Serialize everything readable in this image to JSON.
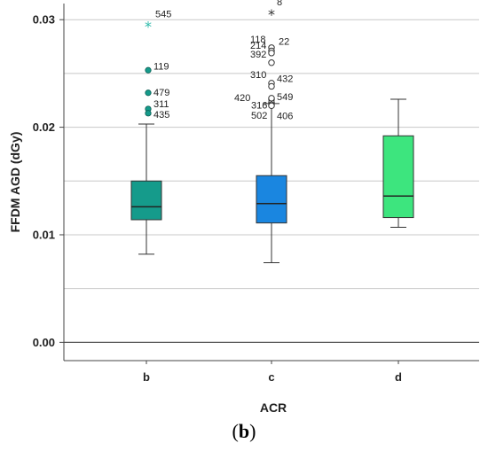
{
  "chart_data": {
    "type": "boxplot",
    "xlabel": "ACR",
    "ylabel": "FFDM AGD (dGy)",
    "ylim": [
      -0.0017,
      0.0315
    ],
    "yticks": [
      0.0,
      0.01,
      0.02,
      0.03
    ],
    "ytick_labels": [
      "0.00",
      "0.01",
      "0.02",
      "0.03"
    ],
    "gridlines": [
      0.005,
      0.01,
      0.015,
      0.02,
      0.025,
      0.03
    ],
    "reference_line": 0.0,
    "categories": [
      "b",
      "c",
      "d"
    ],
    "boxes": [
      {
        "category": "b",
        "color": "#159b8b",
        "whisker_low": 0.0082,
        "q1": 0.0114,
        "median": 0.0126,
        "q3": 0.015,
        "whisker_high": 0.0203,
        "outliers": [
          {
            "id": "545",
            "value": 0.0295,
            "symbol": "star"
          },
          {
            "id": "119",
            "value": 0.0253,
            "symbol": "circle"
          },
          {
            "id": "479",
            "value": 0.0232,
            "symbol": "circle"
          },
          {
            "id": "311",
            "value": 0.0217,
            "symbol": "circle"
          },
          {
            "id": "435",
            "value": 0.0213,
            "symbol": "circle"
          }
        ]
      },
      {
        "category": "c",
        "color": "#1a86e0",
        "whisker_low": 0.0074,
        "q1": 0.0111,
        "median": 0.0129,
        "q3": 0.0155,
        "whisker_high": 0.0222,
        "outliers": [
          {
            "id": "8",
            "value": 0.0306,
            "symbol": "star"
          },
          {
            "id": "118",
            "value": 0.0274,
            "symbol": "circle"
          },
          {
            "id": "22",
            "value": 0.0271,
            "symbol": "circle"
          },
          {
            "id": "214",
            "value": 0.0269,
            "symbol": "circle"
          },
          {
            "id": "392",
            "value": 0.026,
            "symbol": "circle"
          },
          {
            "id": "310",
            "value": 0.0241,
            "symbol": "circle"
          },
          {
            "id": "432",
            "value": 0.0238,
            "symbol": "circle"
          },
          {
            "id": "420",
            "value": 0.0226,
            "symbol": "circle"
          },
          {
            "id": "316",
            "value": 0.0223,
            "symbol": "circle"
          },
          {
            "id": "549",
            "value": 0.0227,
            "symbol": "circle"
          },
          {
            "id": "502",
            "value": 0.0221,
            "symbol": "circle"
          },
          {
            "id": "406",
            "value": 0.022,
            "symbol": "circle"
          }
        ]
      },
      {
        "category": "d",
        "color": "#3de57e",
        "whisker_low": 0.0107,
        "q1": 0.0116,
        "median": 0.0136,
        "q3": 0.0192,
        "whisker_high": 0.0226,
        "outliers": []
      }
    ]
  },
  "caption": {
    "open": "(",
    "letter": "b",
    "close": ")"
  }
}
